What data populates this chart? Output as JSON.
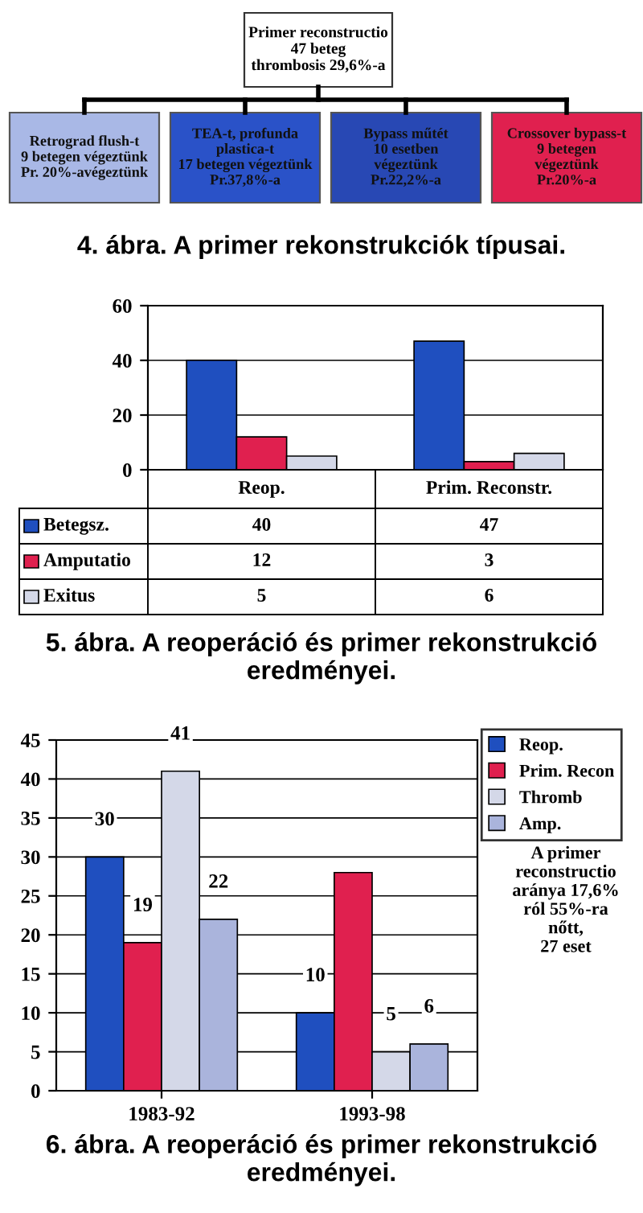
{
  "chart_data": [
    {
      "type": "other",
      "title": "Primer reconstructio\n47 beteg\nthrombosis 29,6%-a",
      "categories": [
        "Retrograd flush-t\n9 betegen végeztünk\nPr. 20%-avégeztünk",
        "TEA-t, profunda\nplastica-t\n17 betegen végeztünk\nPr.37,8%-a",
        "Bypass műtét\n10 esetben\nvégeztünk\nPr.22,2%-a",
        "Crossover bypass-t\n9 betegen\nvégeztünk\nPr.20%-a"
      ],
      "colors": [
        "#a9b8e6",
        "#2a52c8",
        "#2848b4",
        "#e0204f"
      ],
      "annotations": [
        "4. ábra. A primer rekonstrukciók típusai."
      ]
    },
    {
      "type": "bar",
      "categories": [
        "Reop.",
        "Prim. Reconstr."
      ],
      "series": [
        {
          "name": "Betegsz.",
          "color": "#1f4fbf",
          "values": [
            40,
            47
          ]
        },
        {
          "name": "Amputatio",
          "color": "#e0204f",
          "values": [
            12,
            3
          ]
        },
        {
          "name": "Exitus",
          "color": "#d4d8e8",
          "values": [
            5,
            6
          ]
        }
      ],
      "ylim": [
        0,
        60
      ],
      "yticks": [
        0,
        20,
        40,
        60
      ],
      "grid": "y",
      "legend": "bottom",
      "data_labels": true,
      "annotations": [
        "5. ábra. A reoperáció és primer rekonstrukció eredményei."
      ]
    },
    {
      "type": "bar",
      "categories": [
        "1983-92",
        "1993-98"
      ],
      "series": [
        {
          "name": "Reop.",
          "color": "#1f4fbf",
          "values": [
            30,
            10
          ],
          "value_labels": [
            "30",
            "10"
          ]
        },
        {
          "name": "Prim. Recon",
          "color": "#e0204f",
          "values": [
            19,
            28
          ],
          "value_labels": [
            "19",
            null
          ]
        },
        {
          "name": "Thromb",
          "color": "#d4d8e8",
          "values": [
            41,
            5
          ],
          "value_labels": [
            "41",
            "5"
          ]
        },
        {
          "name": "Amp.",
          "color": "#aab4dc",
          "values": [
            22,
            6
          ],
          "value_labels": [
            "22",
            "6"
          ]
        }
      ],
      "ylim": [
        0,
        45
      ],
      "yticks": [
        0,
        5,
        10,
        15,
        20,
        25,
        30,
        35,
        40,
        45
      ],
      "grid": "y",
      "legend": "top right",
      "annotations": [
        "A primer\nreconstructio\naránya 17,6%\nról 55%-ra\nnőtt,\n27 eset",
        "6. ábra. A reoperáció és primer rekonstrukció eredményei."
      ]
    }
  ]
}
